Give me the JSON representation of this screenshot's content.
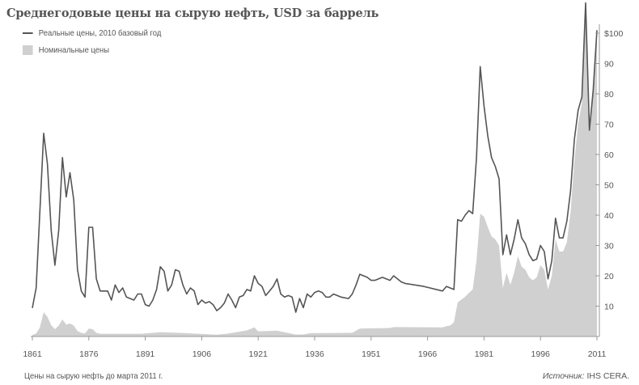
{
  "chart_data": {
    "type": "line+area",
    "title": "Среднегодовые цены на сырую нефть, USD за баррель",
    "legend": [
      "Реальные цены, 2010 базовый год",
      "Номинальные цены"
    ],
    "legend_placement": "top-left",
    "xlim": [
      1861,
      2011
    ],
    "ylim": [
      0,
      110
    ],
    "x_ticks": [
      1861,
      1876,
      1891,
      1906,
      1921,
      1936,
      1951,
      1966,
      1981,
      1996,
      2011
    ],
    "y_ticks": [
      10,
      20,
      30,
      40,
      50,
      60,
      70,
      80,
      90,
      100
    ],
    "y_tick_labels": [
      "10",
      "20",
      "30",
      "40",
      "50",
      "60",
      "70",
      "80",
      "90",
      "$100"
    ],
    "grid": false,
    "colors": {
      "real": "#555555",
      "nominal": "#d0d0d0"
    },
    "series": [
      {
        "name": "Реальные цены, 2010 базовый год",
        "type": "line",
        "points": [
          [
            1861,
            9.4
          ],
          [
            1862,
            16
          ],
          [
            1864,
            67
          ],
          [
            1865,
            57
          ],
          [
            1866,
            35
          ],
          [
            1867,
            23.5
          ],
          [
            1868,
            35
          ],
          [
            1869,
            59
          ],
          [
            1870,
            46
          ],
          [
            1871,
            54
          ],
          [
            1872,
            45
          ],
          [
            1873,
            22
          ],
          [
            1874,
            15
          ],
          [
            1875,
            13
          ],
          [
            1876,
            36
          ],
          [
            1877,
            36
          ],
          [
            1878,
            19
          ],
          [
            1879,
            15
          ],
          [
            1881,
            15
          ],
          [
            1882,
            12
          ],
          [
            1883,
            17
          ],
          [
            1884,
            14.5
          ],
          [
            1885,
            16
          ],
          [
            1886,
            13
          ],
          [
            1888,
            12
          ],
          [
            1889,
            14
          ],
          [
            1890,
            14
          ],
          [
            1891,
            10.5
          ],
          [
            1892,
            10
          ],
          [
            1893,
            12
          ],
          [
            1894,
            15.5
          ],
          [
            1895,
            23
          ],
          [
            1896,
            21.5
          ],
          [
            1897,
            15
          ],
          [
            1898,
            17
          ],
          [
            1899,
            22
          ],
          [
            1900,
            21.5
          ],
          [
            1901,
            17
          ],
          [
            1902,
            14
          ],
          [
            1903,
            16
          ],
          [
            1904,
            15
          ],
          [
            1905,
            10.5
          ],
          [
            1906,
            12
          ],
          [
            1907,
            11
          ],
          [
            1908,
            11.5
          ],
          [
            1909,
            10.5
          ],
          [
            1910,
            8.5
          ],
          [
            1911,
            9.5
          ],
          [
            1912,
            11
          ],
          [
            1913,
            14
          ],
          [
            1914,
            12
          ],
          [
            1915,
            9.5
          ],
          [
            1916,
            13
          ],
          [
            1917,
            13.5
          ],
          [
            1918,
            15.5
          ],
          [
            1919,
            15
          ],
          [
            1920,
            20
          ],
          [
            1921,
            17.5
          ],
          [
            1922,
            16.5
          ],
          [
            1923,
            13.5
          ],
          [
            1924,
            15
          ],
          [
            1925,
            16.5
          ],
          [
            1926,
            19
          ],
          [
            1927,
            14
          ],
          [
            1928,
            13
          ],
          [
            1929,
            13.5
          ],
          [
            1930,
            13
          ],
          [
            1931,
            8
          ],
          [
            1932,
            12.5
          ],
          [
            1933,
            9.5
          ],
          [
            1934,
            14
          ],
          [
            1935,
            13
          ],
          [
            1936,
            14.5
          ],
          [
            1937,
            15
          ],
          [
            1938,
            14.5
          ],
          [
            1939,
            13
          ],
          [
            1940,
            13
          ],
          [
            1941,
            14
          ],
          [
            1942,
            13.5
          ],
          [
            1943,
            13
          ],
          [
            1945,
            12.5
          ],
          [
            1946,
            14
          ],
          [
            1947,
            17
          ],
          [
            1948,
            20.5
          ],
          [
            1949,
            20
          ],
          [
            1950,
            19.5
          ],
          [
            1951,
            18.5
          ],
          [
            1952,
            18.5
          ],
          [
            1953,
            19
          ],
          [
            1954,
            19.5
          ],
          [
            1955,
            19
          ],
          [
            1956,
            18.5
          ],
          [
            1957,
            20
          ],
          [
            1958,
            19
          ],
          [
            1959,
            18
          ],
          [
            1960,
            17.5
          ],
          [
            1965,
            16.5
          ],
          [
            1970,
            15
          ],
          [
            1971,
            16.5
          ],
          [
            1972,
            16
          ],
          [
            1973,
            15.5
          ],
          [
            1974,
            38.5
          ],
          [
            1975,
            38
          ],
          [
            1976,
            40
          ],
          [
            1977,
            41.5
          ],
          [
            1978,
            40.5
          ],
          [
            1979,
            59
          ],
          [
            1980,
            89
          ],
          [
            1981,
            76
          ],
          [
            1982,
            66
          ],
          [
            1983,
            59
          ],
          [
            1984,
            56
          ],
          [
            1985,
            52
          ],
          [
            1986,
            27
          ],
          [
            1987,
            33.5
          ],
          [
            1988,
            27
          ],
          [
            1989,
            32
          ],
          [
            1990,
            38.5
          ],
          [
            1991,
            32.5
          ],
          [
            1992,
            30.5
          ],
          [
            1993,
            27
          ],
          [
            1994,
            25
          ],
          [
            1995,
            25.5
          ],
          [
            1996,
            30
          ],
          [
            1997,
            28
          ],
          [
            1998,
            19
          ],
          [
            1999,
            25
          ],
          [
            2000,
            39
          ],
          [
            2001,
            32.5
          ],
          [
            2002,
            32.5
          ],
          [
            2003,
            38
          ],
          [
            2004,
            48
          ],
          [
            2005,
            65
          ],
          [
            2006,
            74.5
          ],
          [
            2007,
            79
          ],
          [
            2008,
            110
          ],
          [
            2009,
            68
          ],
          [
            2010,
            81
          ],
          [
            2011,
            101
          ]
        ]
      },
      {
        "name": "Номинальные цены",
        "type": "area",
        "points": [
          [
            1861,
            0.5
          ],
          [
            1862,
            1
          ],
          [
            1863,
            3
          ],
          [
            1864,
            8
          ],
          [
            1865,
            6.5
          ],
          [
            1866,
            3.7
          ],
          [
            1867,
            2.4
          ],
          [
            1868,
            3.6
          ],
          [
            1869,
            5.6
          ],
          [
            1870,
            3.9
          ],
          [
            1871,
            4.3
          ],
          [
            1872,
            3.6
          ],
          [
            1873,
            1.8
          ],
          [
            1874,
            1.2
          ],
          [
            1875,
            1
          ],
          [
            1876,
            2.6
          ],
          [
            1877,
            2.4
          ],
          [
            1878,
            1.2
          ],
          [
            1879,
            0.9
          ],
          [
            1890,
            0.9
          ],
          [
            1895,
            1.4
          ],
          [
            1900,
            1.2
          ],
          [
            1910,
            0.6
          ],
          [
            1913,
            0.95
          ],
          [
            1918,
            2
          ],
          [
            1920,
            3
          ],
          [
            1921,
            1.7
          ],
          [
            1926,
            1.9
          ],
          [
            1931,
            0.65
          ],
          [
            1933,
            0.67
          ],
          [
            1935,
            1.1
          ],
          [
            1946,
            1.2
          ],
          [
            1947,
            1.9
          ],
          [
            1948,
            2.6
          ],
          [
            1956,
            2.8
          ],
          [
            1957,
            3.1
          ],
          [
            1970,
            3
          ],
          [
            1971,
            3.4
          ],
          [
            1972,
            3.6
          ],
          [
            1973,
            4.7
          ],
          [
            1974,
            11.2
          ],
          [
            1975,
            12.2
          ],
          [
            1976,
            13.1
          ],
          [
            1977,
            14.4
          ],
          [
            1978,
            15.5
          ],
          [
            1979,
            25
          ],
          [
            1980,
            40.5
          ],
          [
            1981,
            39.5
          ],
          [
            1982,
            36
          ],
          [
            1983,
            33
          ],
          [
            1984,
            32
          ],
          [
            1985,
            30
          ],
          [
            1986,
            16
          ],
          [
            1987,
            21
          ],
          [
            1988,
            17
          ],
          [
            1989,
            21
          ],
          [
            1990,
            26.5
          ],
          [
            1991,
            23
          ],
          [
            1992,
            22
          ],
          [
            1993,
            19.5
          ],
          [
            1994,
            18.5
          ],
          [
            1995,
            19.5
          ],
          [
            1996,
            23.5
          ],
          [
            1997,
            22
          ],
          [
            1998,
            15.5
          ],
          [
            1999,
            20
          ],
          [
            2000,
            32
          ],
          [
            2001,
            28
          ],
          [
            2002,
            28
          ],
          [
            2003,
            31
          ],
          [
            2004,
            41
          ],
          [
            2005,
            58
          ],
          [
            2006,
            70
          ],
          [
            2007,
            77
          ],
          [
            2008,
            108
          ],
          [
            2009,
            68
          ],
          [
            2010,
            80
          ],
          [
            2011,
            100
          ]
        ]
      }
    ],
    "note": "Цены на сырую нефть до марта 2011 г.",
    "source_label": "Источник:",
    "source_value": "IHS CERA."
  }
}
